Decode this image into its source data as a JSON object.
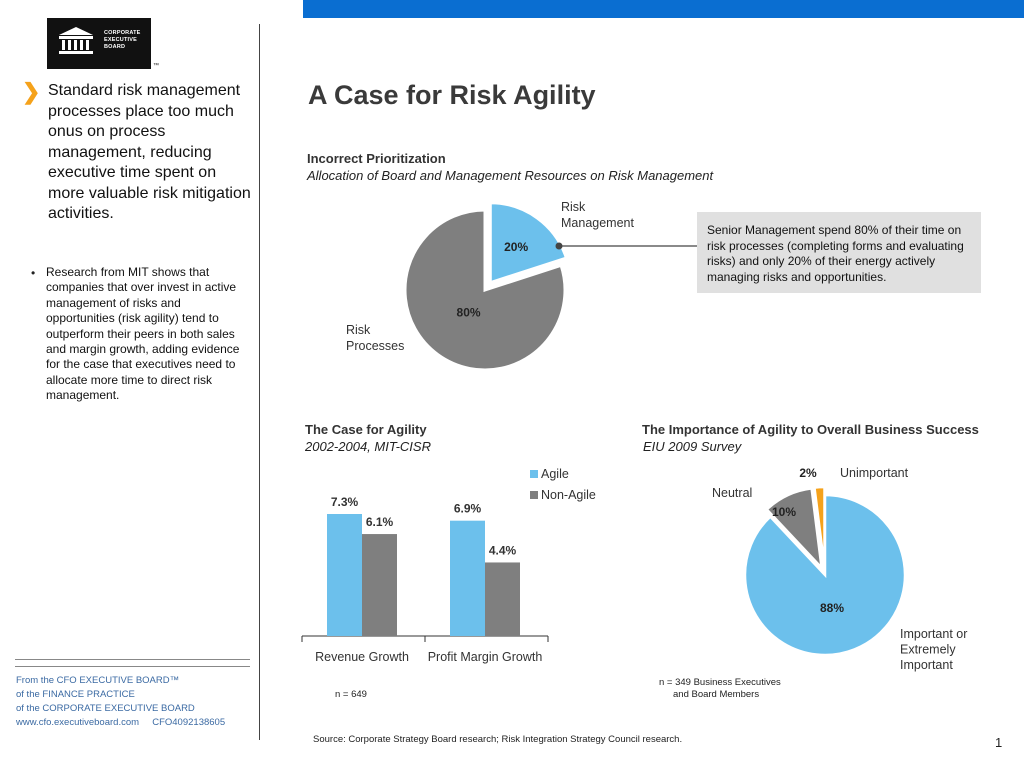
{
  "logo": {
    "lines": [
      "CORPORATE",
      "EXECUTIVE",
      "BOARD"
    ],
    "tm": "™"
  },
  "sidebar": {
    "lead": "Standard risk management processes place too much onus on process management, reducing executive time spent on more valuable risk mitigation activities.",
    "bullet": "Research from MIT shows that companies that over invest in active management of risks and opportunities (risk agility) tend to outperform their peers in both sales and margin growth, adding evidence for the case that executives need to allocate more time to direct risk management."
  },
  "footer": {
    "line1": "From the CFO EXECUTIVE BOARD™",
    "line2": "of the FINANCE PRACTICE",
    "line3": "of the CORPORATE EXECUTIVE BOARD",
    "line4": "www.cfo.executiveboard.com     CFO4092138605"
  },
  "title": "A Case for Risk Agility",
  "section1": {
    "heading": "Incorrect Prioritization",
    "subheading": "Allocation of Board and Management Resources on Risk Management",
    "label_mgmt": "Risk Management",
    "label_proc": "Risk Processes",
    "callout": "Senior Management spend 80% of their time on risk processes (completing forms and evaluating risks) and only 20% of their energy actively managing risks and opportunities."
  },
  "section2": {
    "heading": "The Case for Agility",
    "subheading": "2002-2004, MIT-CISR",
    "n": "n = 649"
  },
  "section3": {
    "heading": "The Importance of Agility to Overall Business Success",
    "subheading": "EIU 2009 Survey",
    "n_line1": "n = 349 Business Executives",
    "n_line2": "and Board Members"
  },
  "source": "Source: Corporate Strategy Board research; Risk Integration Strategy Council research.",
  "page_number": "1",
  "colors": {
    "agile": "#6cc0ec",
    "nonagile": "#7f7f7f",
    "unimportant": "#f5a21b",
    "topbar": "#0a6ed1",
    "accent": "#f5a21b"
  },
  "chart_data": [
    {
      "type": "pie",
      "title": "Incorrect Prioritization",
      "slices": [
        {
          "name": "Risk Management",
          "value": 20,
          "label": "20%",
          "color": "#6cc0ec"
        },
        {
          "name": "Risk Processes",
          "value": 80,
          "label": "80%",
          "color": "#7f7f7f"
        }
      ]
    },
    {
      "type": "bar",
      "title": "The Case for Agility",
      "categories": [
        "Revenue Growth",
        "Profit Margin Growth"
      ],
      "series": [
        {
          "name": "Agile",
          "values": [
            7.3,
            6.9
          ],
          "labels": [
            "7.3%",
            "6.9%"
          ],
          "color": "#6cc0ec"
        },
        {
          "name": "Non-Agile",
          "values": [
            6.1,
            4.4
          ],
          "labels": [
            "6.1%",
            "4.4%"
          ],
          "color": "#7f7f7f"
        }
      ],
      "ylim": [
        0,
        7.3
      ],
      "legend": "top-right"
    },
    {
      "type": "pie",
      "title": "The Importance of Agility to Overall Business Success",
      "slices": [
        {
          "name": "Important or Extremely Important",
          "value": 88,
          "label": "88%",
          "color": "#6cc0ec"
        },
        {
          "name": "Neutral",
          "value": 10,
          "label": "10%",
          "color": "#7f7f7f"
        },
        {
          "name": "Unimportant",
          "value": 2,
          "label": "2%",
          "color": "#f5a21b"
        }
      ]
    }
  ]
}
